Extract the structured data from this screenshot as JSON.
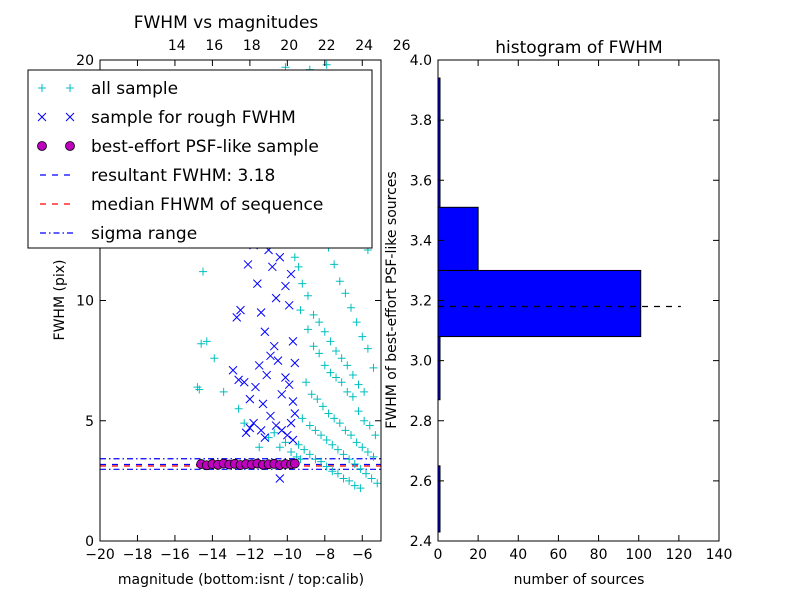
{
  "chart_data": [
    {
      "type": "scatter",
      "title": "FWHM vs magnitudes",
      "xlabel": "magnitude (bottom:isnt / top:calib)",
      "ylabel": "FWHM (pix)",
      "xlim": [
        -20,
        -5
      ],
      "ylim": [
        0,
        20
      ],
      "grid": false,
      "x_ticks": [
        "−20",
        "−18",
        "−16",
        "−14",
        "−12",
        "−10",
        "−8",
        "−6"
      ],
      "x_tick_values": [
        -20,
        -18,
        -16,
        -14,
        -12,
        -10,
        -8,
        -6
      ],
      "y_ticks": [
        "0",
        "5",
        "10",
        "20"
      ],
      "y_tick_values": [
        0,
        5,
        10,
        20
      ],
      "top_axis": {
        "ticks": [
          "14",
          "16",
          "18",
          "20",
          "22",
          "24",
          "26"
        ],
        "tick_values": [
          -15.9,
          -13.9,
          -11.9,
          -9.9,
          -7.9,
          -5.9,
          -3.9
        ]
      },
      "legend": {
        "placement": "upper-left",
        "entries": [
          {
            "label": "all sample",
            "marker": "plus",
            "color": "#00bfbf"
          },
          {
            "label": "sample for rough FWHM",
            "marker": "x",
            "color": "#0000ff"
          },
          {
            "label": "best-effort PSF-like sample",
            "marker": "circle",
            "color": "#bf00bf"
          },
          {
            "label": "resultant FWHM: 3.18",
            "marker": "dashed",
            "color": "#0000ff"
          },
          {
            "label": "median FHWM of sequence",
            "marker": "dashed",
            "color": "#ff0000"
          },
          {
            "label": "sigma range",
            "marker": "dashdot",
            "color": "#0000ff"
          }
        ]
      },
      "series": [
        {
          "marker": "plus",
          "color": "#00bfbf",
          "points": [
            [
              -14.5,
              11.2
            ],
            [
              -14.6,
              8.2
            ],
            [
              -14.3,
              8.3
            ],
            [
              -14.8,
              6.4
            ],
            [
              -14.7,
              6.3
            ],
            [
              -13.9,
              7.6
            ],
            [
              -13.4,
              6.2
            ],
            [
              -12.6,
              5.5
            ],
            [
              -12.3,
              4.9
            ],
            [
              -11.5,
              3.9
            ],
            [
              -9.1,
              12.7
            ],
            [
              -9.3,
              9.6
            ],
            [
              -8.9,
              8.8
            ],
            [
              -8.6,
              8.1
            ],
            [
              -8.3,
              7.8
            ],
            [
              -8.0,
              7.3
            ],
            [
              -7.7,
              7.0
            ],
            [
              -7.4,
              6.8
            ],
            [
              -7.1,
              6.6
            ],
            [
              -6.8,
              6.2
            ],
            [
              -6.5,
              6.0
            ],
            [
              -6.2,
              5.4
            ],
            [
              -5.9,
              5.0
            ],
            [
              -5.6,
              4.8
            ],
            [
              -5.3,
              4.4
            ],
            [
              -9.0,
              6.6
            ],
            [
              -8.7,
              6.1
            ],
            [
              -8.4,
              5.9
            ],
            [
              -8.1,
              5.6
            ],
            [
              -7.8,
              5.3
            ],
            [
              -7.5,
              5.1
            ],
            [
              -7.2,
              4.9
            ],
            [
              -6.9,
              4.6
            ],
            [
              -6.6,
              4.4
            ],
            [
              -6.3,
              4.1
            ],
            [
              -6.0,
              3.9
            ],
            [
              -5.7,
              3.7
            ],
            [
              -5.4,
              3.5
            ],
            [
              -9.2,
              5.1
            ],
            [
              -8.8,
              4.8
            ],
            [
              -8.5,
              4.6
            ],
            [
              -8.2,
              4.4
            ],
            [
              -7.9,
              4.2
            ],
            [
              -7.6,
              4.0
            ],
            [
              -7.3,
              3.8
            ],
            [
              -7.0,
              3.6
            ],
            [
              -6.7,
              3.4
            ],
            [
              -6.4,
              3.2
            ],
            [
              -6.1,
              3.0
            ],
            [
              -5.8,
              2.8
            ],
            [
              -5.5,
              2.6
            ],
            [
              -5.2,
              2.4
            ],
            [
              -9.4,
              4.0
            ],
            [
              -9.1,
              3.8
            ],
            [
              -8.8,
              3.6
            ],
            [
              -8.5,
              3.4
            ],
            [
              -8.2,
              3.3
            ],
            [
              -7.9,
              3.1
            ],
            [
              -7.6,
              2.9
            ],
            [
              -7.3,
              2.8
            ],
            [
              -7.0,
              2.6
            ],
            [
              -6.7,
              2.5
            ],
            [
              -6.4,
              2.3
            ],
            [
              -6.1,
              2.2
            ],
            [
              -9.6,
              13.0
            ],
            [
              -9.4,
              11.4
            ],
            [
              -9.2,
              10.7
            ],
            [
              -8.9,
              10.2
            ],
            [
              -8.6,
              9.4
            ],
            [
              -8.3,
              9.1
            ],
            [
              -8.0,
              8.7
            ],
            [
              -7.7,
              8.3
            ],
            [
              -7.4,
              7.9
            ],
            [
              -7.1,
              7.6
            ],
            [
              -6.8,
              7.3
            ],
            [
              -6.5,
              6.9
            ],
            [
              -6.2,
              6.5
            ],
            [
              -5.9,
              6.2
            ],
            [
              -8.8,
              19.6
            ],
            [
              -7.9,
              19.8
            ],
            [
              -8.5,
              18.3
            ],
            [
              -8.1,
              17.7
            ],
            [
              -7.6,
              16.9
            ],
            [
              -7.3,
              15.8
            ],
            [
              -6.9,
              15.2
            ],
            [
              -6.6,
              14.4
            ],
            [
              -6.3,
              13.7
            ],
            [
              -6.0,
              12.8
            ],
            [
              -5.7,
              12.1
            ],
            [
              -8.7,
              14.1
            ],
            [
              -8.2,
              12.9
            ],
            [
              -7.8,
              12.2
            ],
            [
              -7.5,
              11.5
            ],
            [
              -7.2,
              10.8
            ],
            [
              -6.9,
              10.3
            ],
            [
              -6.6,
              9.7
            ],
            [
              -6.3,
              9.1
            ],
            [
              -6.0,
              8.5
            ],
            [
              -5.7,
              8.0
            ],
            [
              -5.4,
              7.2
            ],
            [
              -10.1,
              19.7
            ],
            [
              -9.8,
              14.5
            ],
            [
              -9.6,
              11.8
            ],
            [
              -11.0,
              4.3
            ],
            [
              -10.7,
              4.5
            ],
            [
              -10.4,
              3.9
            ],
            [
              -10.1,
              4.1
            ],
            [
              -9.8,
              3.7
            ],
            [
              -9.5,
              3.5
            ],
            [
              -9.3,
              3.4
            ]
          ]
        },
        {
          "marker": "x",
          "color": "#0000ff",
          "points": [
            [
              -12.7,
              9.3
            ],
            [
              -12.5,
              9.6
            ],
            [
              -12.1,
              11.5
            ],
            [
              -11.8,
              12.3
            ],
            [
              -11.6,
              10.7
            ],
            [
              -11.4,
              9.5
            ],
            [
              -11.2,
              8.7
            ],
            [
              -11.0,
              12.1
            ],
            [
              -10.8,
              11.4
            ],
            [
              -10.6,
              10.1
            ],
            [
              -10.4,
              11.8
            ],
            [
              -10.2,
              12.9
            ],
            [
              -10.1,
              10.6
            ],
            [
              -9.9,
              9.8
            ],
            [
              -9.8,
              11.1
            ],
            [
              -9.7,
              8.3
            ],
            [
              -9.6,
              7.4
            ],
            [
              -12.9,
              7.1
            ],
            [
              -12.6,
              6.7
            ],
            [
              -12.3,
              6.6
            ],
            [
              -12.0,
              5.9
            ],
            [
              -11.7,
              6.4
            ],
            [
              -11.5,
              7.3
            ],
            [
              -11.3,
              5.7
            ],
            [
              -11.1,
              6.9
            ],
            [
              -10.9,
              7.7
            ],
            [
              -10.7,
              8.1
            ],
            [
              -10.5,
              7.5
            ],
            [
              -10.3,
              6.1
            ],
            [
              -10.1,
              6.8
            ],
            [
              -9.9,
              6.5
            ],
            [
              -9.7,
              5.8
            ],
            [
              -9.6,
              5.3
            ],
            [
              -12.2,
              4.5
            ],
            [
              -12.0,
              4.7
            ],
            [
              -11.8,
              4.9
            ],
            [
              -11.2,
              4.3
            ],
            [
              -10.9,
              5.2
            ],
            [
              -10.6,
              4.8
            ],
            [
              -10.3,
              4.6
            ],
            [
              -10.0,
              4.4
            ],
            [
              -9.8,
              4.9
            ],
            [
              -9.7,
              4.2
            ],
            [
              -10.4,
              2.6
            ],
            [
              -9.9,
              12.6
            ],
            [
              -9.8,
              13.1
            ],
            [
              -10.6,
              12.4
            ],
            [
              -11.4,
              4.6
            ]
          ]
        },
        {
          "marker": "circle",
          "color": "#bf00bf",
          "points": [
            [
              -14.6,
              3.2
            ],
            [
              -14.3,
              3.15
            ],
            [
              -14.0,
              3.2
            ],
            [
              -13.7,
              3.17
            ],
            [
              -13.4,
              3.22
            ],
            [
              -13.1,
              3.18
            ],
            [
              -12.8,
              3.21
            ],
            [
              -12.5,
              3.16
            ],
            [
              -12.2,
              3.2
            ],
            [
              -11.9,
              3.18
            ],
            [
              -11.6,
              3.22
            ],
            [
              -11.3,
              3.17
            ],
            [
              -11.0,
              3.19
            ],
            [
              -10.7,
              3.21
            ],
            [
              -10.4,
              3.16
            ],
            [
              -10.1,
              3.2
            ],
            [
              -9.8,
              3.19
            ],
            [
              -9.6,
              3.22
            ]
          ]
        }
      ],
      "hlines": [
        {
          "name": "resultant FWHM: 3.18",
          "y": 3.18,
          "color": "#0000ff",
          "style": "dashed"
        },
        {
          "name": "median FHWM of sequence",
          "y": 3.12,
          "color": "#ff0000",
          "style": "dashed"
        },
        {
          "name": "sigma range",
          "y": 3.42,
          "color": "#0000ff",
          "style": "dashdot"
        },
        {
          "name": "sigma range",
          "y": 2.98,
          "color": "#0000ff",
          "style": "dashdot"
        }
      ]
    },
    {
      "type": "bar",
      "orientation": "horizontal",
      "title": "histogram of FWHM",
      "xlabel": "number of sources",
      "ylabel": "FWHM of best-effort PSF-like sources",
      "xlim": [
        0,
        140
      ],
      "ylim": [
        2.4,
        4.0
      ],
      "grid": false,
      "x_ticks": [
        "0",
        "20",
        "40",
        "60",
        "80",
        "100",
        "120",
        "140"
      ],
      "x_tick_values": [
        0,
        20,
        40,
        60,
        80,
        100,
        120,
        140
      ],
      "y_ticks": [
        "2.4",
        "2.6",
        "2.8",
        "3.0",
        "3.2",
        "3.4",
        "3.6",
        "3.8",
        "4.0"
      ],
      "y_tick_values": [
        2.4,
        2.6,
        2.8,
        3.0,
        3.2,
        3.4,
        3.6,
        3.8,
        4.0
      ],
      "bar_color": "#0000ff",
      "bins": [
        {
          "from": 2.43,
          "to": 2.65,
          "count": 1
        },
        {
          "from": 2.87,
          "to": 3.08,
          "count": 1
        },
        {
          "from": 3.08,
          "to": 3.3,
          "count": 101
        },
        {
          "from": 3.3,
          "to": 3.51,
          "count": 20
        },
        {
          "from": 3.51,
          "to": 3.94,
          "count": 1
        }
      ],
      "reference_line": {
        "y": 3.18,
        "style": "dashed",
        "color": "#000000"
      }
    }
  ]
}
